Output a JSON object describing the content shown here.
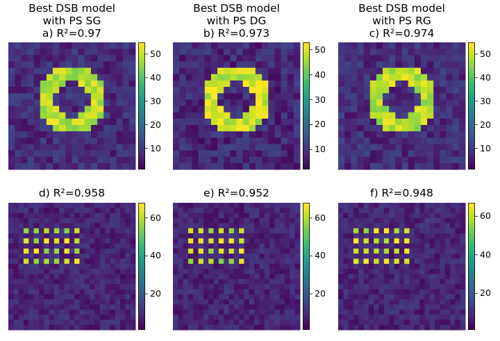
{
  "chart_data": [
    {
      "type": "heatmap",
      "id": "a",
      "title": [
        "Best DSB model",
        "with PS SG",
        "a)  R²=0.97"
      ],
      "pattern": "ring",
      "grid": [
        20,
        20
      ],
      "colormap": "viridis",
      "cbar_range": [
        1,
        55
      ],
      "cbar_ticks": [
        10,
        20,
        30,
        40,
        50
      ],
      "background_level": 8,
      "peak_level": 50
    },
    {
      "type": "heatmap",
      "id": "b",
      "title": [
        "Best DSB model",
        "with PS DG",
        "b)  R²=0.973"
      ],
      "pattern": "ring",
      "grid": [
        20,
        20
      ],
      "colormap": "viridis",
      "cbar_range": [
        2,
        53
      ],
      "cbar_ticks": [
        10,
        20,
        30,
        40,
        50
      ],
      "background_level": 8,
      "peak_level": 50
    },
    {
      "type": "heatmap",
      "id": "c",
      "title": [
        "Best DSB model",
        "with PS RG",
        "c)  R²=0.974"
      ],
      "pattern": "ring",
      "grid": [
        20,
        20
      ],
      "colormap": "viridis",
      "cbar_range": [
        1,
        55
      ],
      "cbar_ticks": [
        10,
        20,
        30,
        40,
        50
      ],
      "background_level": 8,
      "peak_level": 50
    },
    {
      "type": "heatmap",
      "id": "d",
      "title": [
        "d)  R²=0.958"
      ],
      "pattern": "dots",
      "grid": [
        25,
        25
      ],
      "colormap": "viridis",
      "cbar_range": [
        1,
        68
      ],
      "cbar_ticks": [
        20,
        40,
        60
      ],
      "background_level": 8,
      "peak_level": 62
    },
    {
      "type": "heatmap",
      "id": "e",
      "title": [
        "e)  R²=0.952"
      ],
      "pattern": "dots",
      "grid": [
        25,
        25
      ],
      "colormap": "viridis",
      "cbar_range": [
        1,
        68
      ],
      "cbar_ticks": [
        20,
        40,
        60
      ],
      "background_level": 8,
      "peak_level": 62
    },
    {
      "type": "heatmap",
      "id": "f",
      "title": [
        "f)  R²=0.948"
      ],
      "pattern": "dots",
      "grid": [
        25,
        25
      ],
      "colormap": "viridis",
      "cbar_range": [
        1,
        67
      ],
      "cbar_ticks": [
        20,
        40,
        60
      ],
      "background_level": 8,
      "peak_level": 62
    }
  ]
}
